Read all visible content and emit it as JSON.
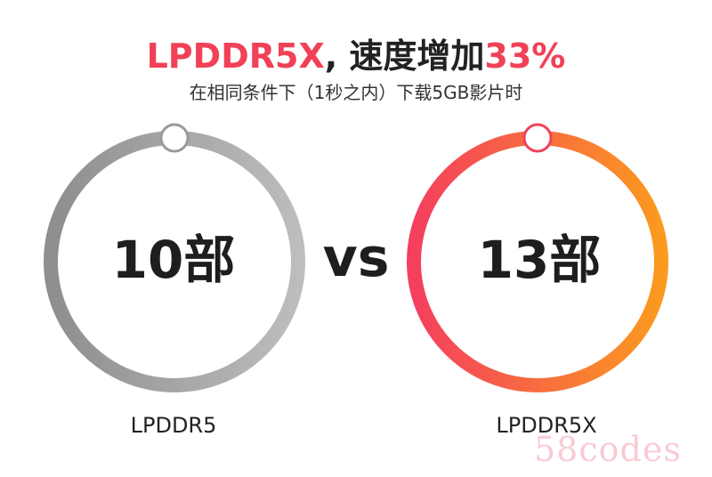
{
  "header": {
    "title_lead": "LPDDR5X",
    "title_mid": ", 速度增加",
    "title_pct": "33%",
    "subtitle": "在相同条件下（1秒之内）下载5GB影片时"
  },
  "comparison": {
    "left": {
      "value": "10部",
      "label": "LPDDR5",
      "gradient_start": "#8e8e8e",
      "gradient_end": "#bdbdbd"
    },
    "vs": "vs",
    "right": {
      "value": "13部",
      "label": "LPDDR5X",
      "gradient_start": "#f43f5e",
      "gradient_end": "#fb9a1f"
    }
  },
  "watermark": "58codes"
}
